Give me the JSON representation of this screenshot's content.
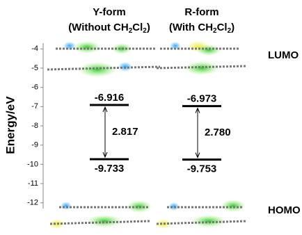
{
  "chart_data": {
    "type": "energy-level",
    "y_label": "Energy/eV",
    "ylim": [
      -12.3,
      -3.7
    ],
    "yticks": [
      -4,
      -5,
      -6,
      -7,
      -8,
      -9,
      -10,
      -11,
      -12
    ],
    "level_labels": [
      "LUMO",
      "HOMO"
    ],
    "columns": [
      {
        "title": "Y-form",
        "subtitle": [
          "(Without CH",
          "2",
          "Cl",
          "2",
          ")"
        ],
        "lumo": -6.916,
        "homo": -9.733,
        "gap": 2.817
      },
      {
        "title": "R-form",
        "subtitle": [
          "(With CH",
          "2",
          "Cl",
          "2",
          ")"
        ],
        "lumo": -6.973,
        "homo": -9.753,
        "gap": 2.78,
        "gap_label": "2.780"
      }
    ]
  }
}
